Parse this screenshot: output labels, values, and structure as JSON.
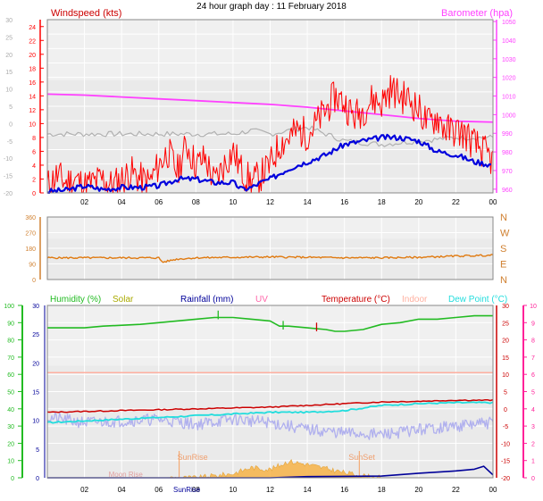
{
  "page": {
    "title": "24 hour graph day : 11 February 2018"
  },
  "colors": {
    "windspeed": "#ff0000",
    "windspeed_dark": "#cc0000",
    "gust_avg": "#0000dd",
    "wind_dir": "#b0b0b0",
    "barometer": "#ff40ff",
    "wind_bearing": "#e07a10",
    "humidity": "#22bb22",
    "solar": "#aaaa00",
    "rainfall": "#000099",
    "uv": "#ff66aa",
    "temperature": "#cc0000",
    "indoor": "#ffb0a0",
    "dewpoint": "#22dddd",
    "uv_axis": "#ff2299",
    "plot_bg": "#eaeaea",
    "grid": "#ffffff"
  },
  "chart_data": [
    {
      "type": "line",
      "name": "wind-barometer",
      "x_ticks": [
        "02",
        "04",
        "06",
        "08",
        "10",
        "12",
        "14",
        "16",
        "18",
        "20",
        "22",
        "00"
      ],
      "left_axis_label": "Windspeed (kts)",
      "right_axis_label": "Barometer (hpa)",
      "windspeed_ticks": [
        0,
        2,
        4,
        6,
        8,
        10,
        12,
        14,
        16,
        18,
        20,
        22,
        24
      ],
      "temp_ticks": [
        -20,
        -15,
        -10,
        -5,
        0,
        5,
        10,
        15,
        20,
        25,
        30
      ],
      "baro_ticks": [
        960,
        970,
        980,
        990,
        1000,
        1010,
        1020,
        1030,
        1040,
        1050
      ],
      "ylim_wind": [
        0,
        25
      ],
      "ylim_baro": [
        958,
        1051
      ],
      "series": [
        {
          "name": "Windspeed (kts)",
          "key": "wind_speed",
          "x_hours": [
            0,
            0.5,
            1,
            1.5,
            2,
            2.5,
            3,
            3.5,
            4,
            4.5,
            5,
            5.5,
            6,
            6.5,
            7,
            7.5,
            8,
            8.5,
            9,
            9.5,
            10,
            10.5,
            11,
            11.5,
            12,
            12.5,
            13,
            13.5,
            14,
            14.5,
            15,
            15.5,
            16,
            16.5,
            17,
            17.5,
            18,
            18.5,
            19,
            19.5,
            20,
            20.5,
            21,
            21.5,
            22,
            22.5,
            23,
            23.5,
            24
          ],
          "values": [
            1,
            2.5,
            1.5,
            2,
            1,
            1.5,
            2,
            1,
            2,
            3,
            2,
            1.5,
            4,
            6,
            3,
            7,
            4,
            5,
            1.5,
            4,
            6,
            3,
            1.5,
            2.5,
            4,
            7,
            8,
            9,
            8.5,
            10,
            12,
            14,
            13,
            11,
            12,
            13.5,
            13,
            15,
            14,
            13.5,
            12,
            10,
            11,
            9,
            9,
            8.5,
            7,
            6,
            4.5
          ]
        },
        {
          "name": "Wind avg",
          "key": "wind_avg",
          "x_hours": [
            0,
            1,
            2,
            3,
            4,
            5,
            6,
            7,
            8,
            9,
            10,
            10.5,
            11,
            11.5,
            12,
            13,
            14,
            15,
            16,
            17,
            18,
            19,
            20,
            21,
            22,
            23,
            24
          ],
          "values": [
            0.2,
            0.4,
            1,
            0.5,
            0.8,
            0.8,
            1,
            2,
            2,
            1.5,
            1.5,
            0.5,
            0.8,
            1.5,
            2,
            3.5,
            4.5,
            5.5,
            7,
            7.5,
            8,
            8,
            7.5,
            6,
            5.5,
            4.5,
            4
          ]
        },
        {
          "name": "Barometer (hpa)",
          "key": "barometer",
          "x_hours": [
            0,
            2,
            4,
            6,
            8,
            10,
            12,
            14,
            16,
            18,
            20,
            22,
            24
          ],
          "values": [
            1011,
            1010.5,
            1009.5,
            1008.5,
            1007.5,
            1006.5,
            1005.5,
            1004,
            1002,
            1000,
            998,
            996.5,
            996
          ]
        },
        {
          "name": "Wind direction trace",
          "key": "wind_dir_trace",
          "x_hours": [
            0,
            2,
            4,
            6,
            8,
            10,
            11,
            12,
            13,
            14,
            15,
            16,
            18,
            20,
            22,
            24
          ],
          "values": [
            -3,
            -3,
            -3,
            -3,
            -3,
            -3,
            -2,
            -3,
            -2,
            -1,
            -3,
            -5,
            -6,
            -5,
            -4,
            -4
          ]
        }
      ]
    },
    {
      "type": "line",
      "name": "wind-bearing",
      "left_ticks": [
        0,
        90,
        180,
        270,
        360
      ],
      "right_ticks": [
        "N",
        "E",
        "S",
        "W",
        "N"
      ],
      "ylim": [
        0,
        360
      ],
      "series": [
        {
          "name": "Wind bearing",
          "key": "bearing",
          "x_hours": [
            0,
            2,
            4,
            6,
            6.2,
            7,
            8,
            10,
            12,
            14,
            16,
            18,
            20,
            22,
            24
          ],
          "values": [
            125,
            125,
            125,
            125,
            100,
            118,
            125,
            128,
            130,
            128,
            125,
            125,
            128,
            135,
            140
          ]
        }
      ]
    },
    {
      "type": "line",
      "name": "temp-humidity-rain",
      "x_ticks": [
        "02",
        "04",
        "06",
        "08",
        "10",
        "12",
        "14",
        "16",
        "18",
        "20",
        "22",
        "00"
      ],
      "legend": [
        "Humidity (%)",
        "Solar",
        "Rainfall (mm)",
        "UV",
        "Temperature (°C)",
        "Indoor",
        "Dew Point (°C)"
      ],
      "humidity_ticks": [
        0,
        10,
        20,
        30,
        40,
        50,
        60,
        70,
        80,
        90,
        100
      ],
      "rain_ticks": [
        0,
        5,
        10,
        15,
        20,
        25,
        30
      ],
      "temp_ticks": [
        -20,
        -15,
        -10,
        -5,
        0,
        5,
        10,
        15,
        20,
        25,
        30
      ],
      "uv_ticks": [
        0,
        1,
        2,
        3,
        4,
        5,
        6,
        7,
        8,
        9,
        10
      ],
      "annotations": [
        "SunRise",
        "SunSet",
        "Moon Rise"
      ],
      "sunrise_label": "SunRise",
      "series": [
        {
          "name": "Humidity (%)",
          "key": "humidity",
          "x_hours": [
            0,
            2,
            3,
            5,
            6,
            8,
            9,
            10,
            11,
            12,
            12.5,
            13,
            14,
            15,
            15.5,
            16,
            17,
            18,
            19,
            20,
            21,
            22,
            23,
            24
          ],
          "values": [
            87,
            87,
            88,
            89,
            90,
            92,
            93,
            93,
            92,
            91,
            88,
            88,
            87,
            86,
            85,
            85,
            86,
            89,
            90,
            92,
            92,
            93,
            94,
            94
          ]
        },
        {
          "name": "Temperature (°C)",
          "key": "temperature",
          "x_hours": [
            0,
            4,
            8,
            12,
            16,
            18,
            20,
            22,
            24
          ],
          "values": [
            -1,
            -0.5,
            0,
            0.5,
            1.5,
            2,
            2.2,
            2.5,
            2.5
          ]
        },
        {
          "name": "Dew Point (°C)",
          "key": "dewpoint",
          "x_hours": [
            0,
            4,
            8,
            12,
            14,
            16,
            18,
            20,
            22,
            24
          ],
          "values": [
            -4,
            -3,
            -2,
            -1,
            -1,
            -0.5,
            1,
            1.5,
            1.8,
            1.8
          ]
        },
        {
          "name": "Indoor",
          "key": "indoor",
          "x_hours": [
            0,
            24
          ],
          "values": [
            10.5,
            10.5
          ]
        },
        {
          "name": "UV trace",
          "key": "uv_trace",
          "x_hours": [
            0,
            2,
            4,
            6,
            8,
            10,
            12,
            14,
            16,
            18,
            20,
            22,
            24
          ],
          "values": [
            3.5,
            3.2,
            3.3,
            3.4,
            3.1,
            3.4,
            3.2,
            2.8,
            2.6,
            2.5,
            2.8,
            3.0,
            3.2
          ]
        },
        {
          "name": "Solar",
          "key": "solar",
          "x_hours": [
            6.5,
            8,
            9,
            10,
            11,
            12,
            13,
            14,
            15,
            16,
            17,
            18
          ],
          "values": [
            0,
            0,
            0.2,
            0.4,
            1,
            0.8,
            1.6,
            1.3,
            0.9,
            0.5,
            0.2,
            0
          ]
        },
        {
          "name": "Rainfall (mm)",
          "key": "rainfall",
          "x_hours": [
            0,
            12,
            14,
            18,
            20,
            22,
            23,
            23.5,
            24
          ],
          "values": [
            0,
            0,
            0.2,
            0.3,
            0.8,
            1.2,
            1.5,
            2,
            0.5
          ]
        }
      ]
    }
  ]
}
